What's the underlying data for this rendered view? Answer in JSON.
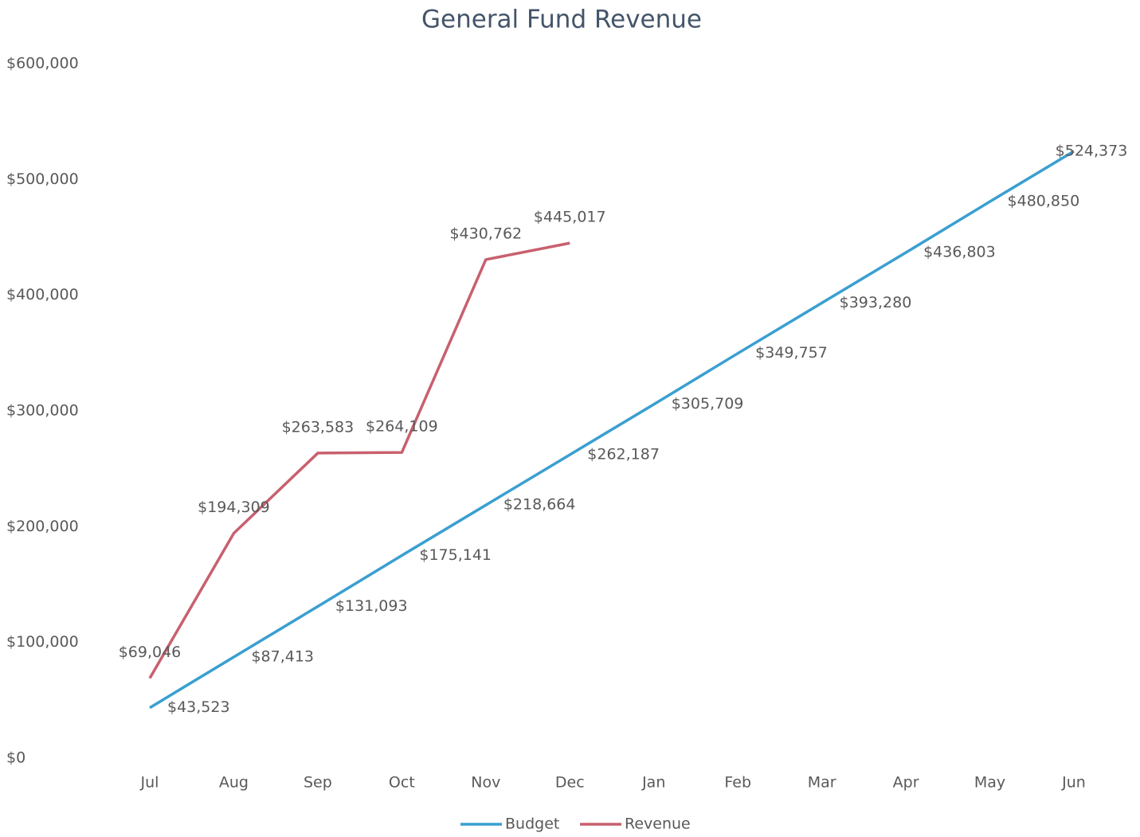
{
  "chart_data": {
    "type": "line",
    "title": "General Fund Revenue",
    "categories": [
      "Jul",
      "Aug",
      "Sep",
      "Oct",
      "Nov",
      "Dec",
      "Jan",
      "Feb",
      "Mar",
      "Apr",
      "May",
      "Jun"
    ],
    "series": [
      {
        "name": "Budget",
        "color": "#3a9fd0",
        "values": [
          43523,
          87413,
          131093,
          175141,
          218664,
          262187,
          305709,
          349757,
          393280,
          436803,
          480850,
          524373
        ],
        "value_labels": [
          "$43,523",
          "$87,413",
          "$131,093",
          "$175,141",
          "$218,664",
          "$262,187",
          "$305,709",
          "$349,757",
          "$393,280",
          "$436,803",
          "$480,850",
          "$524,373"
        ]
      },
      {
        "name": "Revenue",
        "color": "#c8606e",
        "values": [
          69046,
          194309,
          263583,
          264109,
          430762,
          445017,
          null,
          null,
          null,
          null,
          null,
          null
        ],
        "value_labels": [
          "$69,046",
          "$194,309",
          "$263,583",
          "$264,109",
          "$430,762",
          "$445,017",
          null,
          null,
          null,
          null,
          null,
          null
        ]
      }
    ],
    "ylim": [
      0,
      600000
    ],
    "yticks": [
      {
        "value": 0,
        "label": "$0"
      },
      {
        "value": 100000,
        "label": "$100,000"
      },
      {
        "value": 200000,
        "label": "$200,000"
      },
      {
        "value": 300000,
        "label": "$300,000"
      },
      {
        "value": 400000,
        "label": "$400,000"
      },
      {
        "value": 500000,
        "label": "$500,000"
      },
      {
        "value": 600000,
        "label": "$600,000"
      }
    ],
    "grid": false,
    "legend": "bottom"
  }
}
